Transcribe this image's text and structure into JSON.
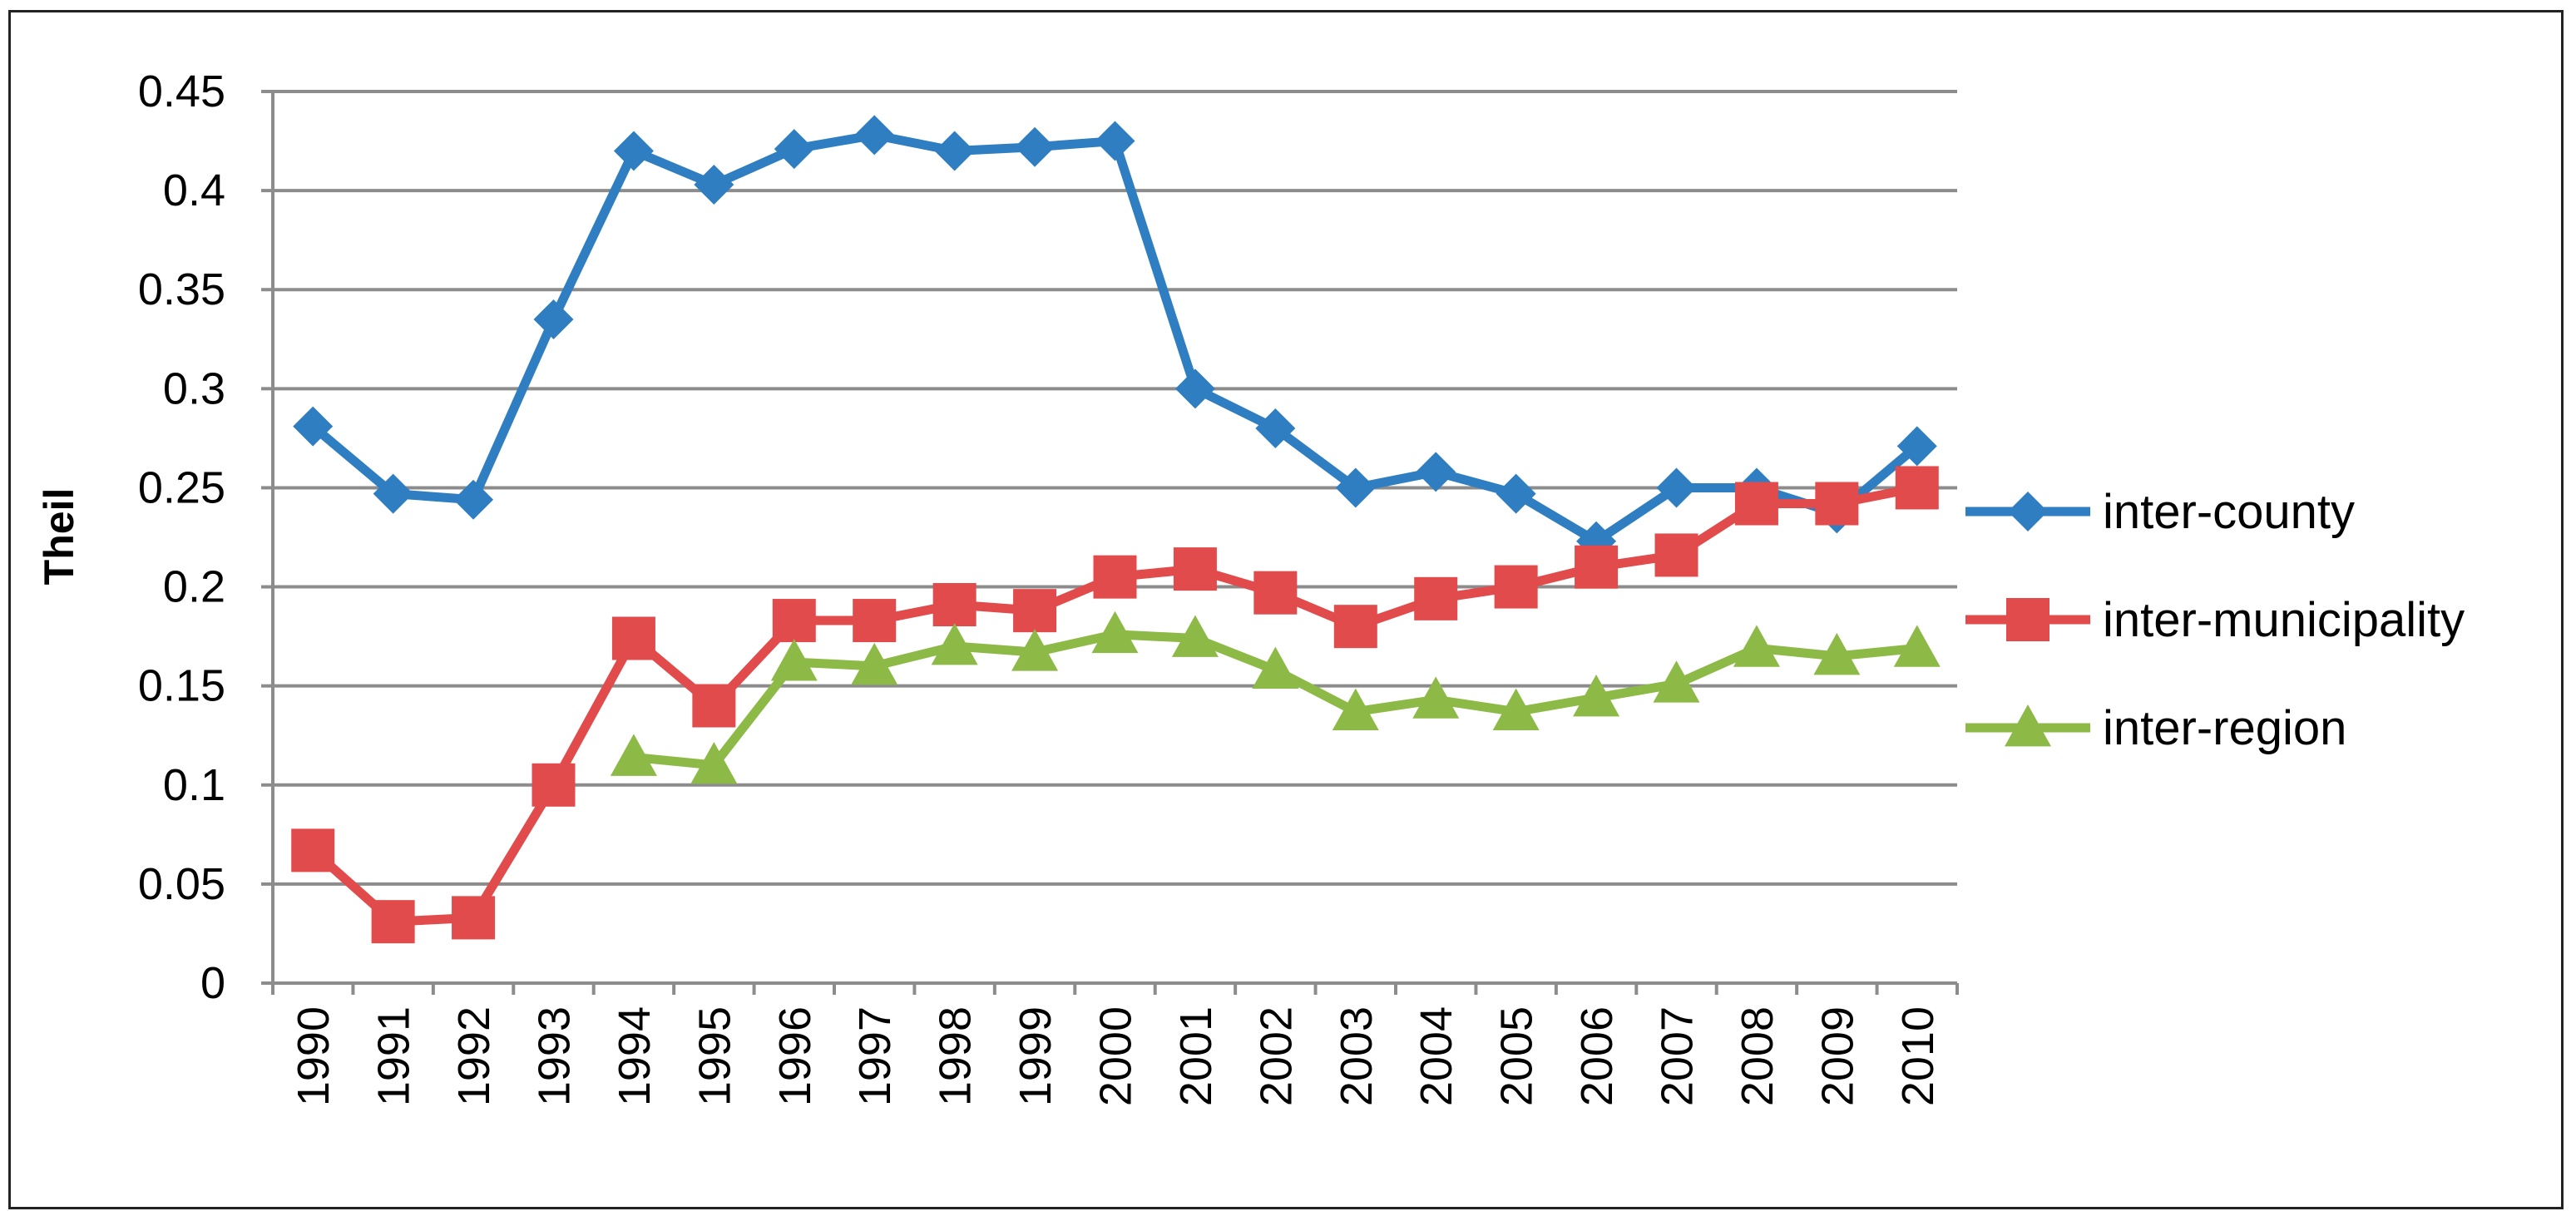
{
  "chart_data": {
    "type": "line",
    "title": "",
    "xlabel": "",
    "ylabel": "Theil",
    "ylim": [
      0,
      0.45
    ],
    "y_ticks": [
      "0",
      "0.05",
      "0.1",
      "0.15",
      "0.2",
      "0.25",
      "0.3",
      "0.35",
      "0.4",
      "0.45"
    ],
    "categories": [
      "1990",
      "1991",
      "1992",
      "1993",
      "1994",
      "1995",
      "1996",
      "1997",
      "1998",
      "1999",
      "2000",
      "2001",
      "2002",
      "2003",
      "2004",
      "2005",
      "2006",
      "2007",
      "2008",
      "2009",
      "2010"
    ],
    "grid": true,
    "legend_position": "right",
    "series": [
      {
        "name": "inter-county",
        "color": "#2E7EC1",
        "marker": "diamond",
        "values": [
          0.281,
          0.247,
          0.244,
          0.335,
          0.42,
          0.403,
          0.421,
          0.428,
          0.42,
          0.422,
          0.425,
          0.3,
          0.28,
          0.25,
          0.258,
          0.247,
          0.223,
          0.25,
          0.25,
          0.237,
          0.271
        ]
      },
      {
        "name": "inter-municipality",
        "color": "#E14B4B",
        "marker": "square",
        "values": [
          0.067,
          0.031,
          0.033,
          0.1,
          0.174,
          0.14,
          0.183,
          0.183,
          0.191,
          0.188,
          0.205,
          0.209,
          0.197,
          0.18,
          0.194,
          0.2,
          0.21,
          0.216,
          0.242,
          0.242,
          0.25
        ]
      },
      {
        "name": "inter-region",
        "color": "#8DBA47",
        "marker": "triangle",
        "values": [
          null,
          null,
          null,
          null,
          0.114,
          0.11,
          0.162,
          0.16,
          0.17,
          0.167,
          0.176,
          0.174,
          0.158,
          0.137,
          0.143,
          0.137,
          0.144,
          0.151,
          0.169,
          0.165,
          0.169
        ]
      }
    ]
  }
}
